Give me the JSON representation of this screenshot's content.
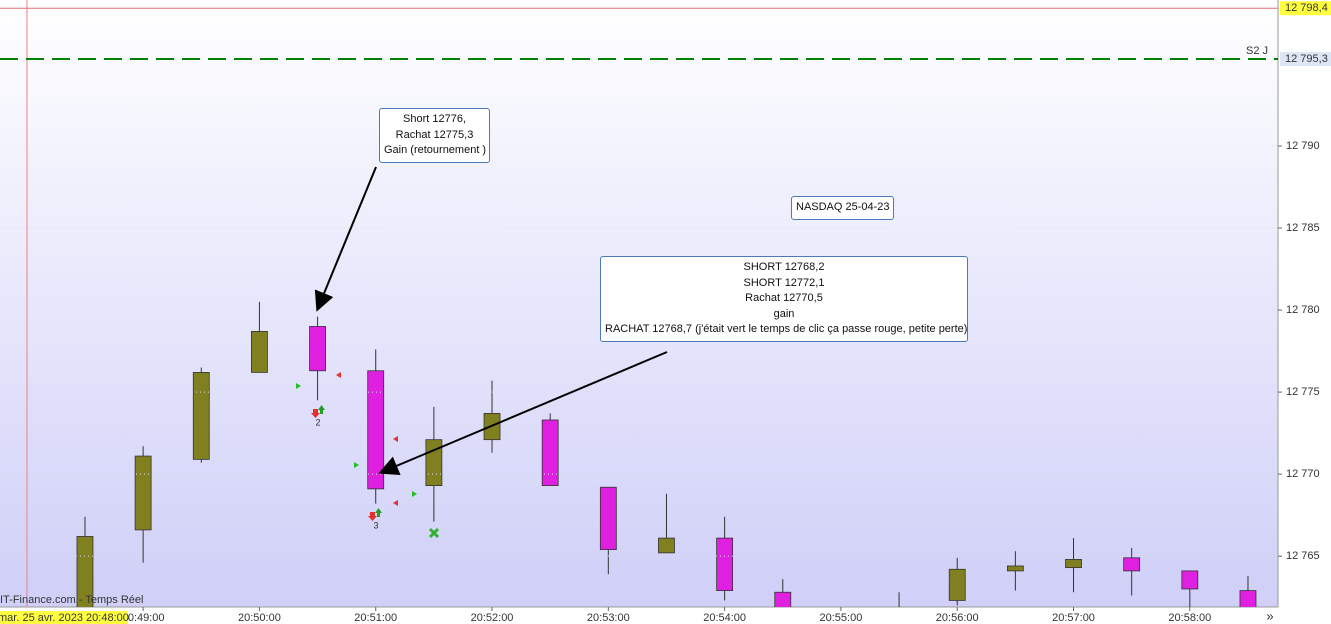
{
  "chart_data": {
    "type": "candlestick",
    "categories": [
      null,
      "20:49:00",
      null,
      "20:50:00",
      null,
      "20:51:00",
      null,
      "20:52:00",
      null,
      "20:53:00",
      null,
      "20:54:00",
      null,
      "20:55:00",
      null,
      "20:56:00",
      null,
      "20:57:00",
      null,
      "20:58:00",
      null
    ],
    "open": [
      12761.5,
      12766.6,
      12770.9,
      12776.2,
      12779.0,
      12776.3,
      12769.3,
      12772.1,
      12773.3,
      12769.2,
      12765.2,
      12766.1,
      12762.8,
      null,
      12761.6,
      12762.3,
      12764.1,
      12764.3,
      12764.9,
      12764.1,
      12762.9
    ],
    "high": [
      12767.4,
      12771.7,
      12776.5,
      12780.5,
      12779.6,
      12777.6,
      12774.1,
      12775.7,
      12773.7,
      12769.2,
      12768.8,
      12767.4,
      12763.6,
      null,
      12762.8,
      12764.9,
      12765.3,
      12766.1,
      12765.5,
      12764.1,
      12763.8
    ],
    "low": [
      12761.0,
      12764.6,
      12770.7,
      12776.2,
      12774.5,
      12768.2,
      12767.1,
      12771.3,
      12769.3,
      12763.9,
      12765.2,
      12762.3,
      12761.0,
      null,
      12761.0,
      12762.0,
      12762.9,
      12762.8,
      12762.6,
      12761.9,
      12761.0
    ],
    "close": [
      12766.2,
      12771.1,
      12776.2,
      12778.7,
      12776.3,
      12769.1,
      12772.1,
      12773.7,
      12769.3,
      12765.4,
      12766.1,
      12762.9,
      12761.5,
      null,
      12761.3,
      12764.2,
      12764.4,
      12764.8,
      12764.1,
      12763.0,
      12761.6
    ],
    "up_color": "#808020",
    "down_color": "#e020e0",
    "ylim": [
      12761.9,
      12798.9
    ],
    "yticks": [
      {
        "value": 12765,
        "label": "12 765"
      },
      {
        "value": 12770,
        "label": "12 770"
      },
      {
        "value": 12775,
        "label": "12 775"
      },
      {
        "value": 12780,
        "label": "12 780"
      },
      {
        "value": 12785,
        "label": "12 785"
      },
      {
        "value": 12790,
        "label": "12 790"
      }
    ],
    "levels": [
      {
        "value": 12798.4,
        "label": "12 798,4",
        "color": "#e07070",
        "dashed": false
      },
      {
        "value": 12795.3,
        "label": "12 795,3",
        "name": "S2 J",
        "color": "#008000",
        "dashed": true
      }
    ],
    "annotations": [
      {
        "lines": [
          "Short 12776,",
          "Rachat 12775,3",
          "Gain (retournement )"
        ]
      },
      {
        "lines": [
          "NASDAQ 25-04-23"
        ]
      },
      {
        "lines": [
          "SHORT 12768,2",
          "SHORT 12772,1",
          "Rachat 12770,5",
          "gain",
          "RACHAT 12768,7 (j'était vert le temps de clic ça passe rouge, petite perte)"
        ]
      }
    ],
    "trade_counts": [
      "2",
      "3"
    ],
    "source": "IT-Finance.com - Temps Réel",
    "cursor_date": "mar. 25 avr. 2023 20:48:00",
    "scroll": "»"
  }
}
